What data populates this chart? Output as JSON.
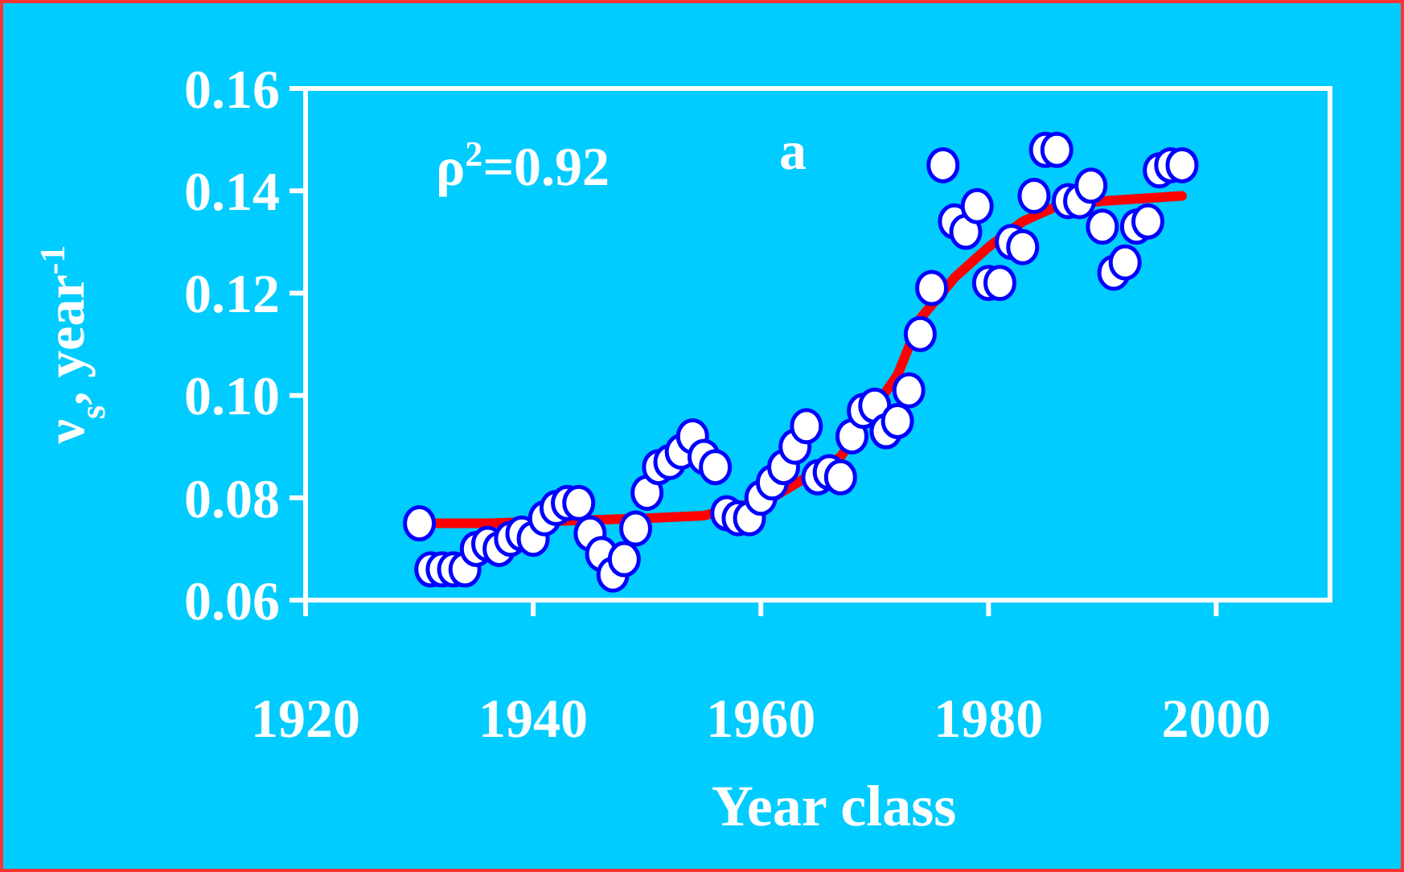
{
  "chart_data": {
    "type": "scatter",
    "xlabel": "Year  class",
    "ylabel": "ν$_{s}$, year$^{-1}$",
    "annotations": [
      "ρ$^{2}$=0.92",
      "a"
    ],
    "xlim": [
      1920,
      2010
    ],
    "xticks": [
      1920,
      1940,
      1960,
      1980,
      2000
    ],
    "ylim": [
      0.06,
      0.16
    ],
    "yticks": [
      {
        "value": 0.06,
        "label": "0.06"
      },
      {
        "value": 0.08,
        "label": "0.08"
      },
      {
        "value": 0.1,
        "label": "0.10"
      },
      {
        "value": 0.12,
        "label": "0.12"
      },
      {
        "value": 0.14,
        "label": "0.14"
      },
      {
        "value": 0.16,
        "label": "0.16"
      }
    ],
    "grid": false,
    "series": [
      {
        "type": "line",
        "color": "#ff0000",
        "line_style": "solid",
        "marker": "none",
        "x": [
          1931.5,
          1936,
          1950,
          1955,
          1961,
          1964,
          1967,
          1972,
          1974,
          1977,
          1980,
          1983,
          1986,
          1990,
          1997
        ],
        "values": [
          0.075,
          0.075,
          0.076,
          0.0765,
          0.08,
          0.084,
          0.088,
          0.104,
          0.115,
          0.123,
          0.129,
          0.134,
          0.137,
          0.138,
          0.139
        ]
      },
      {
        "color": "#ffffff",
        "marker": "circle",
        "x": [
          1930,
          1931,
          1932,
          1933,
          1934,
          1935,
          1936,
          1937,
          1938,
          1939,
          1940,
          1941,
          1942,
          1943,
          1944,
          1945,
          1946,
          1947,
          1948,
          1949,
          1950,
          1951,
          1952,
          1953,
          1954,
          1955,
          1956,
          1957,
          1958,
          1959,
          1960,
          1961,
          1962,
          1963,
          1964,
          1965,
          1966,
          1967,
          1968,
          1969,
          1970,
          1971,
          1972,
          1973,
          1974,
          1975,
          1976,
          1977,
          1978,
          1979,
          1980,
          1981,
          1982,
          1983,
          1984,
          1985,
          1986,
          1987,
          1988,
          1989,
          1990,
          1991,
          1992,
          1993,
          1994,
          1995,
          1996,
          1997
        ],
        "values": [
          0.075,
          0.066,
          0.066,
          0.066,
          0.066,
          0.07,
          0.071,
          0.07,
          0.072,
          0.073,
          0.072,
          0.076,
          0.078,
          0.079,
          0.079,
          0.073,
          0.069,
          0.065,
          0.068,
          0.074,
          0.081,
          0.086,
          0.087,
          0.089,
          0.092,
          0.088,
          0.086,
          0.077,
          0.076,
          0.076,
          0.08,
          0.083,
          0.086,
          0.09,
          0.094,
          0.084,
          0.085,
          0.084,
          0.092,
          0.097,
          0.098,
          0.093,
          0.095,
          0.101,
          0.112,
          0.121,
          0.145,
          0.134,
          0.132,
          0.137,
          0.122,
          0.122,
          0.13,
          0.129,
          0.139,
          0.148,
          0.148,
          0.138,
          0.138,
          0.141,
          0.133,
          0.124,
          0.126,
          0.133,
          0.134,
          0.144,
          0.145,
          0.145
        ]
      }
    ]
  }
}
